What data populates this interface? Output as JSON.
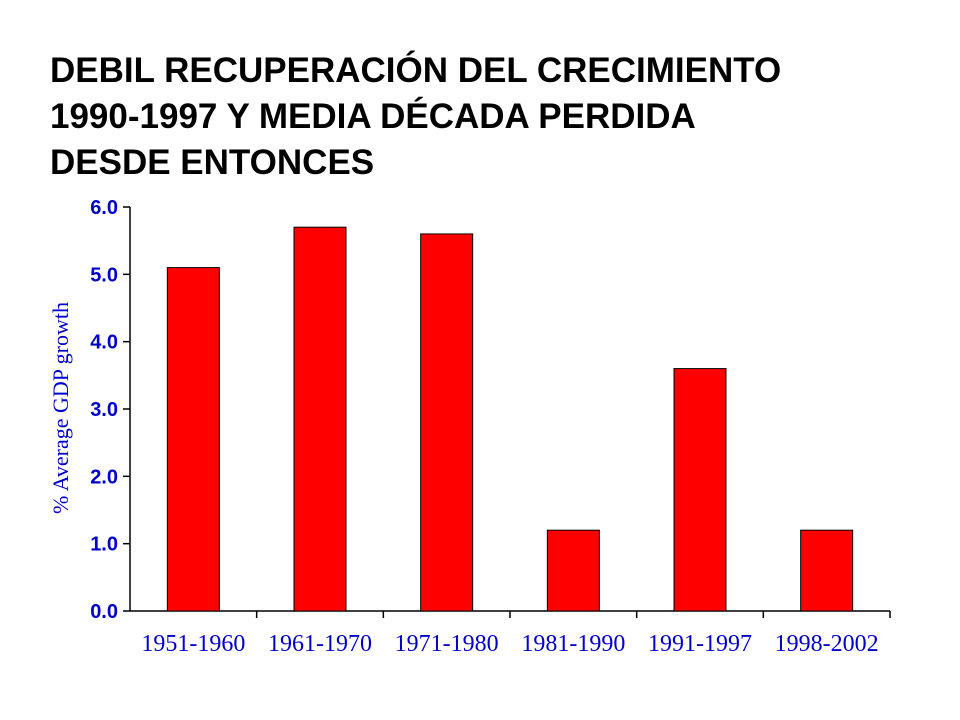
{
  "slide": {
    "title_lines": [
      "DEBIL RECUPERACIÓN DEL CRECIMIENTO",
      "1990-1997 Y MEDIA DÉCADA PERDIDA",
      "DESDE ENTONCES"
    ]
  },
  "chart_data": {
    "type": "bar",
    "categories": [
      "1951-1960",
      "1961-1970",
      "1971-1980",
      "1981-1990",
      "1991-1997",
      "1998-2002"
    ],
    "values": [
      5.1,
      5.7,
      5.6,
      1.2,
      3.6,
      1.2
    ],
    "ylabel": "% Average GDP growth",
    "xlabel": "",
    "ylim": [
      0,
      6
    ],
    "yticks": [
      "0.0",
      "1.0",
      "2.0",
      "3.0",
      "4.0",
      "5.0",
      "6.0"
    ],
    "grid": false,
    "legend": "none",
    "colors": {
      "bar": "#ff0000",
      "bar_outline": "#000000",
      "axis": "#000000",
      "text": "#0000cc"
    }
  }
}
